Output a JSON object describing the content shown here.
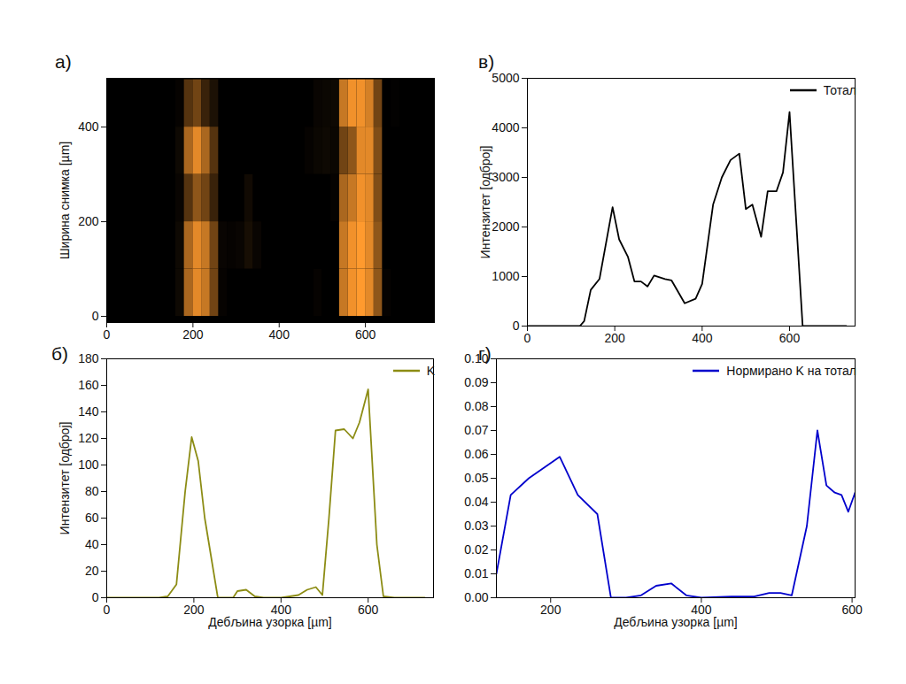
{
  "chart_data": [
    {
      "type": "heatmap",
      "panel": "а)",
      "ylabel": "Ширина снимка [µm]",
      "xlim": [
        0,
        760
      ],
      "ylim": [
        -13,
        503
      ],
      "xticks": [
        0,
        200,
        400,
        600
      ],
      "yticks": [
        0,
        200,
        400
      ],
      "color": "#ff9a2e",
      "cells": {
        "x_edges": [
          0,
          20,
          40,
          60,
          80,
          100,
          120,
          140,
          160,
          180,
          200,
          220,
          240,
          260,
          280,
          300,
          320,
          340,
          360,
          380,
          400,
          420,
          440,
          460,
          480,
          500,
          520,
          540,
          560,
          580,
          600,
          620,
          640,
          660,
          680,
          700,
          720,
          740,
          760
        ],
        "y_edges": [
          0,
          100,
          200,
          300,
          400,
          500
        ],
        "values": [
          [
            0,
            0,
            0,
            0,
            0,
            0,
            0,
            0,
            0.05,
            0.6,
            0.8,
            0.7,
            0.4,
            0.02,
            0,
            0,
            0,
            0,
            0,
            0,
            0,
            0,
            0,
            0,
            0.02,
            0,
            0,
            0.7,
            0.85,
            0.9,
            0.8,
            0.5,
            0.02,
            0,
            0,
            0,
            0,
            0
          ],
          [
            0,
            0,
            0,
            0,
            0,
            0,
            0,
            0,
            0.05,
            0.6,
            0.8,
            0.7,
            0.4,
            0.03,
            0.02,
            0.03,
            0.08,
            0.03,
            0,
            0,
            0,
            0,
            0,
            0,
            0,
            0,
            0,
            0.7,
            0.85,
            0.9,
            0.8,
            0.5,
            0,
            0,
            0,
            0,
            0,
            0
          ],
          [
            0,
            0,
            0,
            0,
            0,
            0,
            0,
            0,
            0.03,
            0.3,
            0.5,
            0.4,
            0.2,
            0,
            0,
            0,
            0.06,
            0,
            0,
            0,
            0,
            0,
            0,
            0,
            0,
            0,
            0.02,
            0.6,
            0.7,
            0.85,
            0.8,
            0.45,
            0,
            0,
            0,
            0,
            0,
            0
          ],
          [
            0,
            0,
            0,
            0,
            0,
            0,
            0,
            0,
            0.05,
            0.6,
            0.8,
            0.6,
            0.3,
            0,
            0,
            0,
            0,
            0,
            0,
            0,
            0,
            0,
            0,
            0.02,
            0.04,
            0.05,
            0.04,
            0.4,
            0.5,
            0.8,
            0.8,
            0.45,
            0,
            0,
            0,
            0,
            0,
            0
          ],
          [
            0,
            0,
            0,
            0,
            0,
            0,
            0,
            0,
            0.02,
            0.3,
            0.4,
            0.2,
            0.1,
            0,
            0,
            0,
            0,
            0,
            0,
            0,
            0,
            0,
            0,
            0,
            0.03,
            0.04,
            0.05,
            0.7,
            0.85,
            0.85,
            0.75,
            0.4,
            0,
            0.01,
            0,
            0,
            0,
            0
          ]
        ]
      }
    },
    {
      "type": "line",
      "panel": "б)",
      "xlabel": "Дебљина узорка [µm]",
      "ylabel": "Интензитет [одброј]",
      "xlim": [
        0,
        750
      ],
      "ylim": [
        0,
        180
      ],
      "xticks": [
        0,
        200,
        400,
        600
      ],
      "yticks": [
        0,
        20,
        40,
        60,
        80,
        100,
        120,
        140,
        160,
        180
      ],
      "legend": "top-right",
      "x": [
        0,
        100,
        120,
        140,
        160,
        180,
        195,
        210,
        225,
        240,
        255,
        270,
        290,
        300,
        320,
        340,
        360,
        400,
        420,
        440,
        460,
        480,
        495,
        510,
        525,
        545,
        565,
        580,
        600,
        620,
        635,
        660,
        700,
        730
      ],
      "series": [
        {
          "name": "K",
          "color": "#8c8c14",
          "values": [
            0,
            0,
            0,
            1,
            10,
            80,
            121,
            103,
            60,
            30,
            0,
            0,
            0,
            5,
            6,
            1,
            0,
            0,
            1,
            2,
            6,
            8,
            2,
            60,
            126,
            127,
            120,
            132,
            157,
            40,
            1,
            0,
            0,
            0
          ]
        }
      ]
    },
    {
      "type": "line",
      "panel": "в)",
      "ylabel": "Интензитет [одброј]",
      "xlim": [
        0,
        750
      ],
      "ylim": [
        0,
        5000
      ],
      "xticks": [
        0,
        200,
        400,
        600
      ],
      "yticks": [
        0,
        1000,
        2000,
        3000,
        4000,
        5000
      ],
      "legend": "top-right",
      "x": [
        0,
        100,
        120,
        130,
        145,
        165,
        195,
        210,
        230,
        245,
        260,
        275,
        290,
        315,
        330,
        360,
        385,
        400,
        425,
        445,
        465,
        485,
        500,
        515,
        535,
        550,
        570,
        585,
        600,
        630,
        650,
        700,
        730
      ],
      "series": [
        {
          "name": "Тотал",
          "color": "#000000",
          "values": [
            0,
            0,
            0,
            100,
            730,
            950,
            2400,
            1750,
            1400,
            900,
            900,
            800,
            1020,
            950,
            920,
            460,
            550,
            850,
            2450,
            3000,
            3350,
            3480,
            2360,
            2450,
            1800,
            2720,
            2720,
            3100,
            4320,
            0,
            0,
            0,
            0
          ]
        }
      ]
    },
    {
      "type": "line",
      "panel": "г)",
      "xlabel": "Дебљина узорка [µm]",
      "xlim": [
        128,
        604
      ],
      "ylim": [
        0,
        0.1
      ],
      "xticks": [
        200,
        400,
        600
      ],
      "yticks": [
        {
          "value": 0,
          "label": "0.00"
        },
        {
          "value": 0.01,
          "label": "0.01"
        },
        {
          "value": 0.02,
          "label": "0.02"
        },
        {
          "value": 0.03,
          "label": "0.03"
        },
        {
          "value": 0.04,
          "label": "0.04"
        },
        {
          "value": 0.05,
          "label": "0.05"
        },
        {
          "value": 0.06,
          "label": "0.06"
        },
        {
          "value": 0.07,
          "label": "0.07"
        },
        {
          "value": 0.08,
          "label": "0.08"
        },
        {
          "value": 0.09,
          "label": "0.09"
        },
        {
          "value": 0.1,
          "label": "0.10"
        }
      ],
      "legend": "top-right",
      "x": [
        128,
        147,
        171,
        212,
        236,
        262,
        280,
        300,
        320,
        340,
        360,
        380,
        400,
        440,
        470,
        490,
        505,
        520,
        540,
        554,
        566,
        577,
        586,
        595,
        604
      ],
      "series": [
        {
          "name": "Нормирано K на тотал",
          "color": "#0000cc",
          "values": [
            0.01,
            0.043,
            0.05,
            0.059,
            0.043,
            0.035,
            0,
            0,
            0.001,
            0.005,
            0.006,
            0.001,
            0,
            0.0005,
            0.0005,
            0.002,
            0.002,
            0.001,
            0.03,
            0.07,
            0.047,
            0.044,
            0.043,
            0.036,
            0.044
          ]
        }
      ]
    }
  ]
}
